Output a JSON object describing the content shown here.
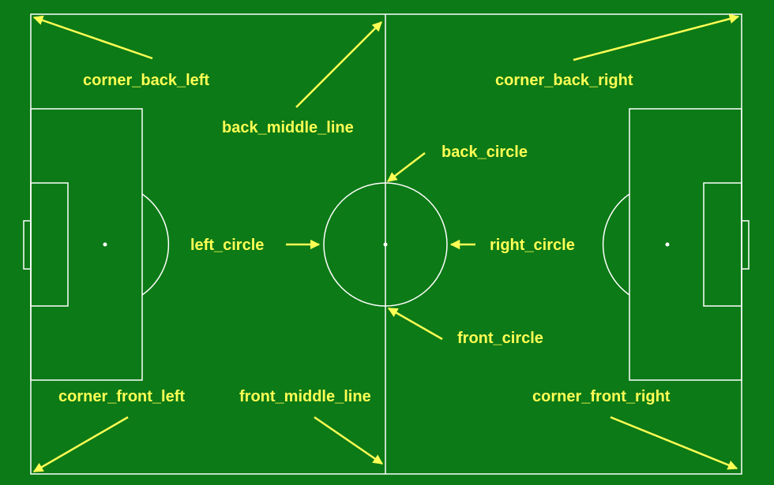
{
  "colors": {
    "field": "#0c7a16",
    "lines": "#ffffff",
    "labels": "#ffff55"
  },
  "labels": {
    "corner_back_left": "corner_back_left",
    "back_middle_line": "back_middle_line",
    "corner_back_right": "corner_back_right",
    "back_circle": "back_circle",
    "left_circle": "left_circle",
    "right_circle": "right_circle",
    "front_circle": "front_circle",
    "corner_front_left": "corner_front_left",
    "front_middle_line": "front_middle_line",
    "corner_front_right": "corner_front_right"
  }
}
